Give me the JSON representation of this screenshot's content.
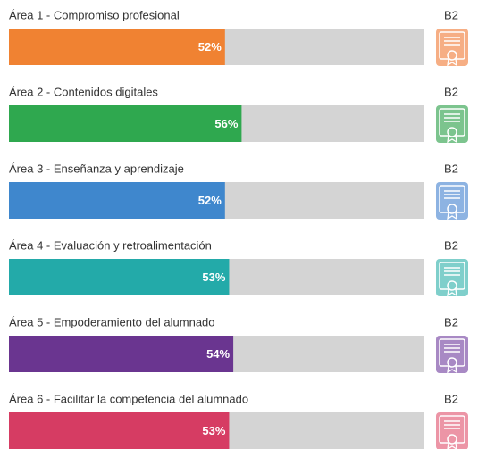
{
  "areas": [
    {
      "label": "Área 1 - Compromiso profesional",
      "value": 52,
      "value_label": "52%",
      "level": "B2",
      "color": "#f08232",
      "badge_color": "#f6ae84"
    },
    {
      "label": "Área 2 - Contenidos digitales",
      "value": 56,
      "value_label": "56%",
      "level": "B2",
      "color": "#2fa84f",
      "badge_color": "#7cc48e"
    },
    {
      "label": "Área 3 - Enseñanza y aprendizaje",
      "value": 52,
      "value_label": "52%",
      "level": "B2",
      "color": "#3f87cd",
      "badge_color": "#8db3e2"
    },
    {
      "label": "Área 4 - Evaluación y retroalimentación",
      "value": 53,
      "value_label": "53%",
      "level": "B2",
      "color": "#23aaa9",
      "badge_color": "#7fcfcb"
    },
    {
      "label": "Área 5 - Empoderamiento del alumnado",
      "value": 54,
      "value_label": "54%",
      "level": "B2",
      "color": "#6a3590",
      "badge_color": "#a889c4"
    },
    {
      "label": "Área 6 - Facilitar la competencia del alumnado",
      "value": 53,
      "value_label": "53%",
      "level": "B2",
      "color": "#d63c63",
      "badge_color": "#ec95a6"
    }
  ]
}
